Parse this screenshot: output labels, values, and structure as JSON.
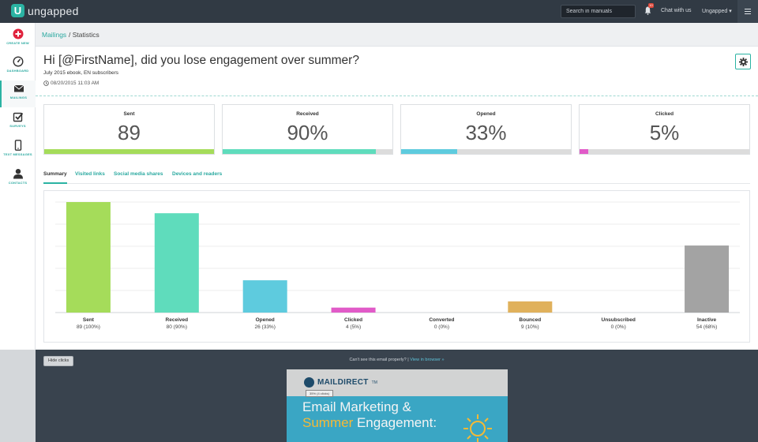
{
  "topbar": {
    "brand": "ungapped",
    "search_placeholder": "Search in manuals",
    "notification_count": "10",
    "chat_label": "Chat with us",
    "user_label": "Ungapped ▾"
  },
  "sidebar": {
    "items": [
      {
        "label": "CREATE NEW"
      },
      {
        "label": "DASHBOARD"
      },
      {
        "label": "MAILINGS"
      },
      {
        "label": "SURVEYS"
      },
      {
        "label": "TEXT MESSAGES"
      },
      {
        "label": "CONTACTS"
      }
    ]
  },
  "breadcrumb": {
    "parent": "Mailings",
    "current": "/ Statistics"
  },
  "mailing": {
    "title": "Hi [@FirstName], did you lose engagement over summer?",
    "subtitle": "July 2015 ebook, EN subscribers",
    "date": "08/20/2015 11:03 AM"
  },
  "cards": [
    {
      "label": "Sent",
      "value": "89",
      "fill": 1.0,
      "color": "#a5dc5a"
    },
    {
      "label": "Received",
      "value": "90%",
      "fill": 0.9,
      "color": "#5fdcbc"
    },
    {
      "label": "Opened",
      "value": "33%",
      "fill": 0.33,
      "color": "#5ecbde"
    },
    {
      "label": "Clicked",
      "value": "5%",
      "fill": 0.05,
      "color": "#e15bc8"
    }
  ],
  "tabs": [
    {
      "label": "Summary",
      "active": true
    },
    {
      "label": "Visited links",
      "active": false
    },
    {
      "label": "Social media shares",
      "active": false
    },
    {
      "label": "Devices and readers",
      "active": false
    }
  ],
  "chart_data": {
    "type": "bar",
    "categories": [
      "Sent",
      "Received",
      "Opened",
      "Clicked",
      "Converted",
      "Bounced",
      "Unsubscribed",
      "Inactive"
    ],
    "values": [
      89,
      80,
      26,
      4,
      0,
      9,
      0,
      54
    ],
    "value_labels": [
      "89 (100%)",
      "80 (90%)",
      "26 (33%)",
      "4 (5%)",
      "0 (0%)",
      "9 (10%)",
      "0 (0%)",
      "54 (68%)"
    ],
    "colors": [
      "#a5dc5a",
      "#5fdcbc",
      "#5ecbde",
      "#e15bc8",
      "#cccccc",
      "#e0b15c",
      "#cccccc",
      "#a3a3a3"
    ],
    "ylim": [
      0,
      89
    ],
    "grid": true
  },
  "preview": {
    "hide_button": "Hide clicks",
    "cant_see": "Can't see this email properly? |",
    "view_in_browser": "View in browser »",
    "brand": "MAILDIRECT",
    "brand_tm": "TM",
    "tag": "35% (4 clicks)",
    "hero_line1": "Email Marketing &",
    "hero_line2_highlight": "Summer",
    "hero_line2_rest": " Engagement:"
  }
}
